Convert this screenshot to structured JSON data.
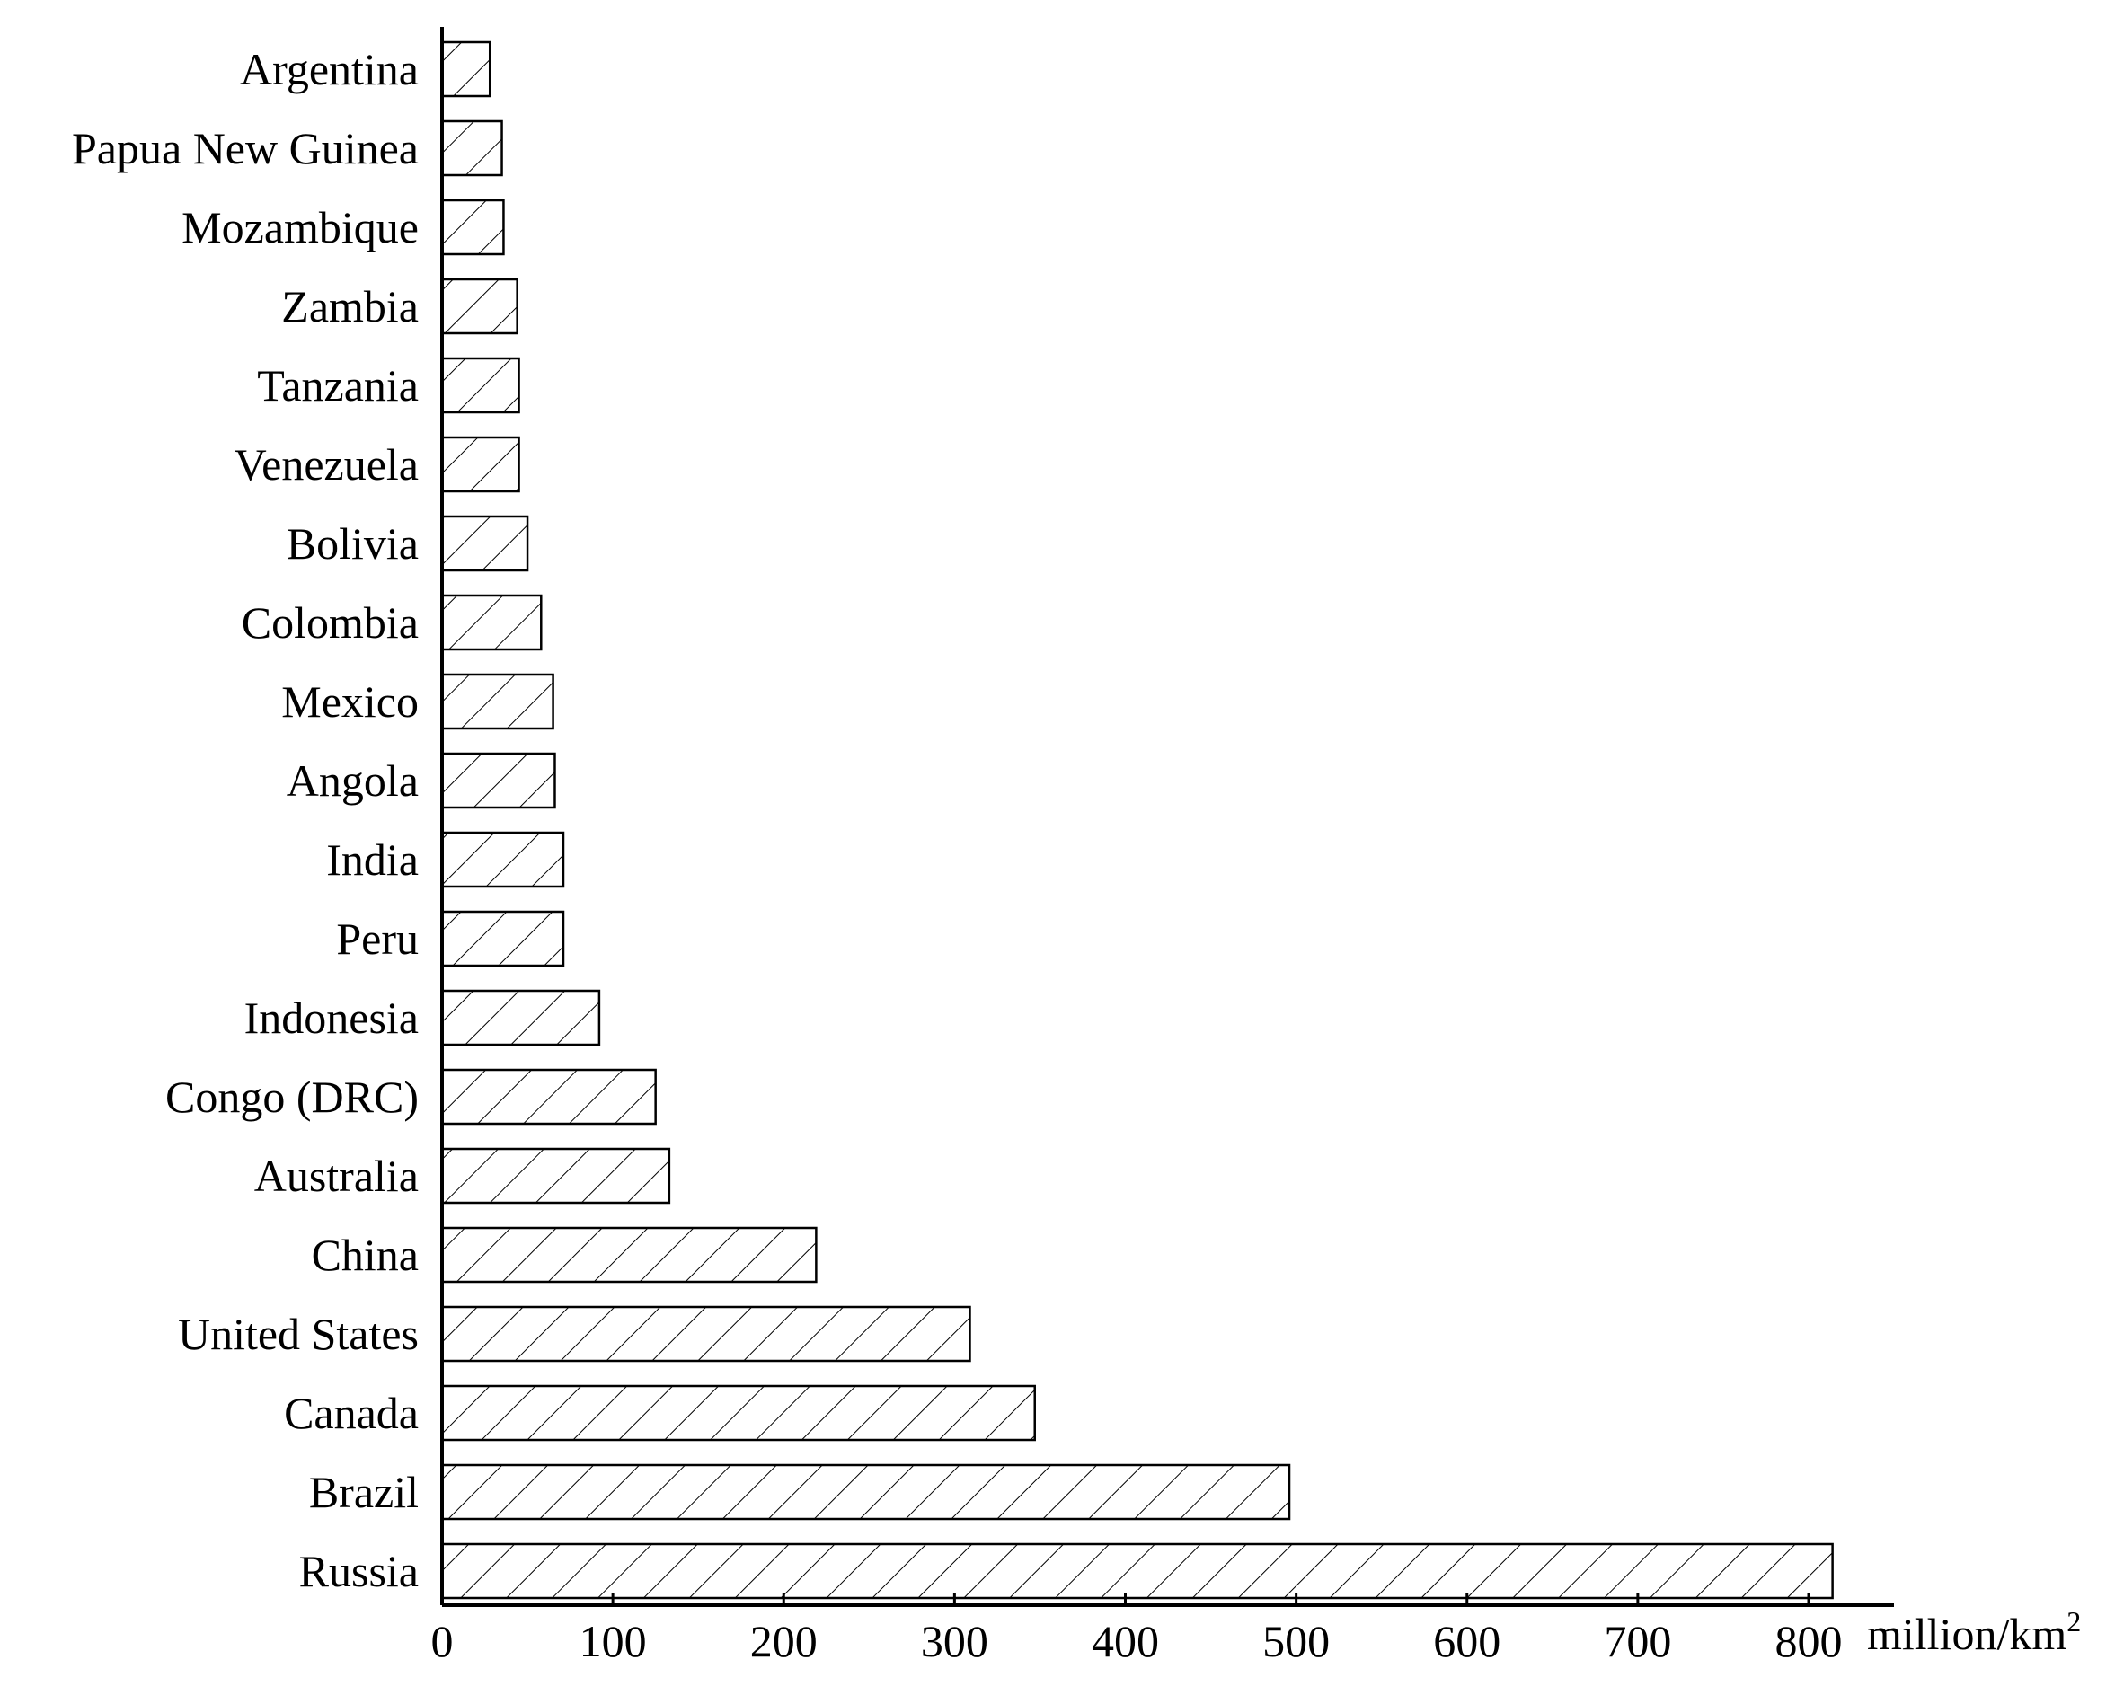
{
  "chart_data": {
    "type": "bar",
    "orientation": "horizontal",
    "categories": [
      "Argentina",
      "Papua New Guinea",
      "Mozambique",
      "Zambia",
      "Tanzania",
      "Venezuela",
      "Bolivia",
      "Colombia",
      "Mexico",
      "Angola",
      "India",
      "Peru",
      "Indonesia",
      "Congo (DRC)",
      "Australia",
      "China",
      "United States",
      "Canada",
      "Brazil",
      "Russia"
    ],
    "values": [
      28,
      35,
      36,
      44,
      45,
      45,
      50,
      58,
      65,
      66,
      71,
      71,
      92,
      125,
      133,
      219,
      309,
      347,
      496,
      814
    ],
    "xticks": [
      "0",
      "100",
      "200",
      "300",
      "400",
      "500",
      "600",
      "700",
      "800"
    ],
    "xlim": [
      0,
      850
    ],
    "unit_label": {
      "base": "million/km",
      "superscript": "2"
    },
    "bar_fill": "hatched diagonal",
    "bar_stroke": "#000000",
    "grid": false,
    "legend": "none"
  }
}
